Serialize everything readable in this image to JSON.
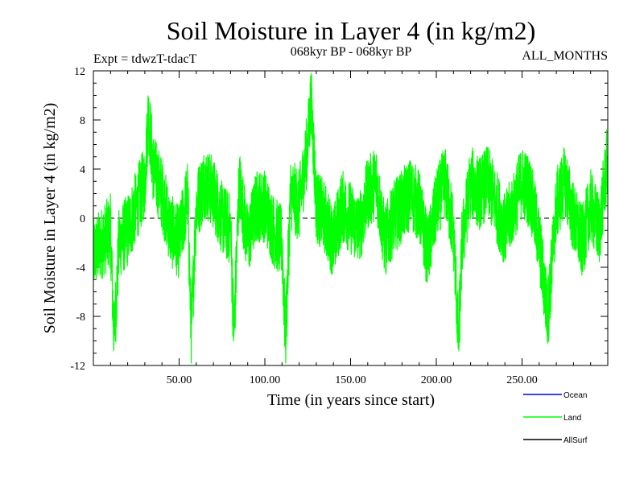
{
  "chart_data": {
    "type": "line",
    "title": "Soil Moisture in Layer 4 (in kg/m2)",
    "subtitle_left": "Expt = tdwzT-tdacT",
    "subtitle_center": "068kyr BP - 068kyr BP",
    "subtitle_right": "ALL_MONTHS",
    "xlabel": "Time (in years since start)",
    "ylabel": "Soil Moisture in Layer 4 (in kg/m2)",
    "xlim": [
      0,
      300
    ],
    "ylim": [
      -12,
      12
    ],
    "x_ticks": [
      {
        "value": 50,
        "label": "50.00"
      },
      {
        "value": 100,
        "label": "100.00"
      },
      {
        "value": 150,
        "label": "150.00"
      },
      {
        "value": 200,
        "label": "200.00"
      },
      {
        "value": 250,
        "label": "250.00"
      }
    ],
    "y_ticks": [
      {
        "value": 12,
        "label": "12"
      },
      {
        "value": 8,
        "label": "8"
      },
      {
        "value": 4,
        "label": "4"
      },
      {
        "value": 0,
        "label": "0"
      },
      {
        "value": -4,
        "label": "-4"
      },
      {
        "value": -8,
        "label": "-8"
      },
      {
        "value": -12,
        "label": "-12"
      }
    ],
    "x_minor_step": 10,
    "y_minor_step": 1,
    "zero_line": true,
    "legend_position": "bottom-right",
    "legend": [
      {
        "name": "Ocean",
        "color": "#0000cc"
      },
      {
        "name": "Land",
        "color": "#00ff00"
      },
      {
        "name": "AllSurf",
        "color": "#000000"
      }
    ],
    "series": [
      {
        "name": "Land",
        "color": "#00ff00",
        "x": [
          0,
          5,
          10,
          12,
          15,
          20,
          25,
          30,
          32,
          35,
          40,
          45,
          50,
          55,
          57,
          60,
          65,
          70,
          75,
          80,
          82,
          85,
          90,
          95,
          100,
          105,
          110,
          112,
          115,
          120,
          125,
          127,
          130,
          135,
          140,
          145,
          150,
          155,
          160,
          165,
          170,
          175,
          180,
          185,
          190,
          195,
          200,
          205,
          210,
          213,
          215,
          220,
          225,
          230,
          235,
          240,
          245,
          250,
          255,
          260,
          265,
          270,
          275,
          280,
          285,
          290,
          295,
          300
        ],
        "values": [
          -3,
          -2,
          -1,
          -10,
          -2,
          -1,
          1,
          3,
          8.5,
          4,
          2,
          -1,
          -2,
          2,
          -9.5,
          1,
          3,
          2,
          0,
          -1,
          -9.5,
          3,
          -2,
          1,
          1,
          -1,
          -2,
          -10,
          2,
          1,
          6,
          10,
          1,
          0,
          -2,
          1,
          0,
          -1,
          2,
          3,
          -2,
          0,
          1,
          2,
          1,
          -3,
          1,
          3,
          -1,
          -10,
          -2,
          3,
          2,
          3,
          1,
          -1,
          1,
          3,
          2,
          -2,
          -8,
          1,
          3,
          0,
          -2,
          1,
          -1,
          5
        ]
      }
    ]
  }
}
